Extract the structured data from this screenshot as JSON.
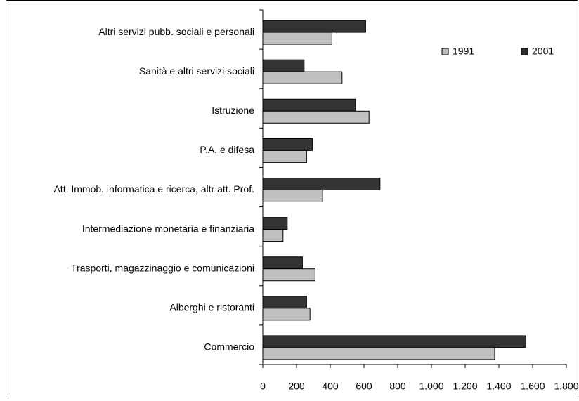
{
  "chart_data": {
    "type": "hbar",
    "categories": [
      "Altri servizi pubb. sociali e personali",
      "Sanità e altri servizi sociali",
      "Istruzione",
      "P.A. e difesa",
      "Att. Immob.  informatica e ricerca, altr att. Prof.",
      "Intermediazione monetaria e finanziaria",
      "Trasporti, magazzinaggio e comunicazioni",
      "Alberghi e ristoranti",
      "Commercio"
    ],
    "series": [
      {
        "name": "1991",
        "color": "#c0c0c0",
        "values": [
          410,
          470,
          630,
          260,
          355,
          120,
          310,
          280,
          1375
        ]
      },
      {
        "name": "2001",
        "color": "#333333",
        "values": [
          610,
          245,
          550,
          295,
          695,
          145,
          235,
          260,
          1560
        ]
      }
    ],
    "xlim": [
      0,
      1800
    ],
    "xticks": [
      0,
      200,
      400,
      600,
      800,
      {
        "value": 1000,
        "label": "1.000"
      },
      {
        "value": 1200,
        "label": "1.200"
      },
      {
        "value": 1400,
        "label": "1.400"
      },
      {
        "value": 1600,
        "label": "1.600"
      },
      {
        "value": 1800,
        "label": "1.800"
      }
    ],
    "legend": "top-right",
    "grid": false
  }
}
